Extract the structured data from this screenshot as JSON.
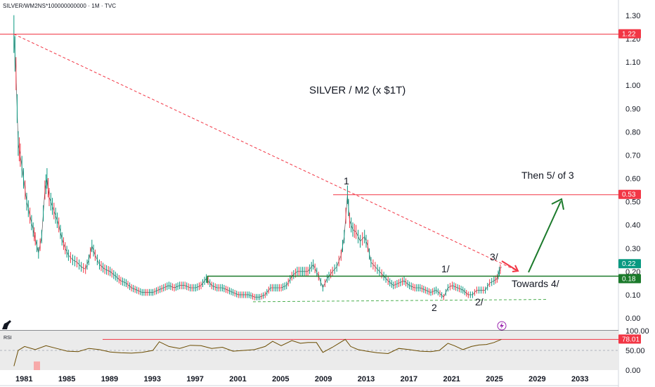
{
  "header": {
    "symbol": "SILVER/WM2NS*100000000000 · 1M · TVC"
  },
  "chart_data": {
    "type": "line",
    "title": "SILVER / M2 (x $1T)",
    "x_ticks": [
      "1981",
      "1985",
      "1989",
      "1993",
      "1997",
      "2001",
      "2005",
      "2009",
      "2013",
      "2017",
      "2021",
      "2025",
      "2029",
      "2033"
    ],
    "y_ticks": [
      "1.30",
      "1.20",
      "1.10",
      "1.00",
      "0.90",
      "0.80",
      "0.70",
      "0.60",
      "0.50",
      "0.40",
      "0.30",
      "0.20",
      "0.10",
      "0.00"
    ],
    "ylim": [
      0,
      1.3
    ],
    "series": [
      {
        "values_by_year": [
          [
            1980.0,
            1.22
          ],
          [
            1980.2,
            1.05
          ],
          [
            1980.4,
            0.75
          ],
          [
            1980.6,
            0.7
          ],
          [
            1980.9,
            0.6
          ],
          [
            1981.2,
            0.5
          ],
          [
            1981.5,
            0.44
          ],
          [
            1981.8,
            0.38
          ],
          [
            1982.0,
            0.34
          ],
          [
            1982.3,
            0.28
          ],
          [
            1982.6,
            0.35
          ],
          [
            1982.9,
            0.55
          ],
          [
            1983.1,
            0.6
          ],
          [
            1983.3,
            0.52
          ],
          [
            1983.6,
            0.48
          ],
          [
            1983.9,
            0.44
          ],
          [
            1984.2,
            0.4
          ],
          [
            1984.5,
            0.34
          ],
          [
            1984.8,
            0.3
          ],
          [
            1985.1,
            0.27
          ],
          [
            1985.5,
            0.25
          ],
          [
            1985.9,
            0.24
          ],
          [
            1986.3,
            0.22
          ],
          [
            1986.7,
            0.21
          ],
          [
            1987.0,
            0.25
          ],
          [
            1987.3,
            0.31
          ],
          [
            1987.6,
            0.27
          ],
          [
            1988.0,
            0.23
          ],
          [
            1988.5,
            0.21
          ],
          [
            1989.0,
            0.2
          ],
          [
            1989.5,
            0.18
          ],
          [
            1990.0,
            0.16
          ],
          [
            1990.5,
            0.15
          ],
          [
            1991.0,
            0.13
          ],
          [
            1991.5,
            0.12
          ],
          [
            1992.0,
            0.11
          ],
          [
            1992.5,
            0.11
          ],
          [
            1993.0,
            0.11
          ],
          [
            1993.5,
            0.12
          ],
          [
            1994.0,
            0.13
          ],
          [
            1994.5,
            0.14
          ],
          [
            1995.0,
            0.13
          ],
          [
            1995.5,
            0.14
          ],
          [
            1996.0,
            0.14
          ],
          [
            1996.5,
            0.13
          ],
          [
            1997.0,
            0.13
          ],
          [
            1997.5,
            0.14
          ],
          [
            1998.0,
            0.17
          ],
          [
            1998.5,
            0.14
          ],
          [
            1999.0,
            0.13
          ],
          [
            1999.5,
            0.13
          ],
          [
            2000.0,
            0.12
          ],
          [
            2000.5,
            0.11
          ],
          [
            2001.0,
            0.1
          ],
          [
            2001.5,
            0.1
          ],
          [
            2002.0,
            0.1
          ],
          [
            2002.5,
            0.09
          ],
          [
            2003.0,
            0.09
          ],
          [
            2003.5,
            0.1
          ],
          [
            2004.0,
            0.13
          ],
          [
            2004.5,
            0.13
          ],
          [
            2005.0,
            0.13
          ],
          [
            2005.5,
            0.14
          ],
          [
            2006.0,
            0.18
          ],
          [
            2006.5,
            0.2
          ],
          [
            2007.0,
            0.2
          ],
          [
            2007.5,
            0.2
          ],
          [
            2008.0,
            0.23
          ],
          [
            2008.5,
            0.18
          ],
          [
            2008.9,
            0.13
          ],
          [
            2009.3,
            0.17
          ],
          [
            2009.8,
            0.2
          ],
          [
            2010.2,
            0.22
          ],
          [
            2010.6,
            0.27
          ],
          [
            2010.9,
            0.35
          ],
          [
            2011.2,
            0.53
          ],
          [
            2011.4,
            0.42
          ],
          [
            2011.7,
            0.38
          ],
          [
            2012.0,
            0.37
          ],
          [
            2012.4,
            0.33
          ],
          [
            2012.8,
            0.35
          ],
          [
            2013.1,
            0.31
          ],
          [
            2013.4,
            0.24
          ],
          [
            2013.8,
            0.22
          ],
          [
            2014.2,
            0.2
          ],
          [
            2014.6,
            0.18
          ],
          [
            2015.0,
            0.16
          ],
          [
            2015.5,
            0.14
          ],
          [
            2016.0,
            0.15
          ],
          [
            2016.5,
            0.16
          ],
          [
            2017.0,
            0.14
          ],
          [
            2017.5,
            0.13
          ],
          [
            2018.0,
            0.13
          ],
          [
            2018.5,
            0.12
          ],
          [
            2019.0,
            0.11
          ],
          [
            2019.5,
            0.12
          ],
          [
            2020.2,
            0.09
          ],
          [
            2020.6,
            0.13
          ],
          [
            2021.0,
            0.14
          ],
          [
            2021.5,
            0.13
          ],
          [
            2022.0,
            0.12
          ],
          [
            2022.5,
            0.1
          ],
          [
            2022.9,
            0.1
          ],
          [
            2023.3,
            0.12
          ],
          [
            2023.7,
            0.12
          ],
          [
            2024.1,
            0.12
          ],
          [
            2024.5,
            0.15
          ],
          [
            2024.9,
            0.16
          ],
          [
            2025.2,
            0.17
          ],
          [
            2025.4,
            0.2
          ],
          [
            2025.6,
            0.22
          ]
        ]
      }
    ],
    "price_tags": [
      {
        "label": "1.22",
        "value": 1.22,
        "color": "#f23645"
      },
      {
        "label": "0.53",
        "value": 0.53,
        "color": "#f23645"
      },
      {
        "label": "0.22",
        "value": 0.22,
        "color": "#089981"
      },
      {
        "label": "0.18",
        "value": 0.18,
        "color": "#1b7a2b"
      }
    ],
    "annotations": {
      "wave_1": "1",
      "wave_1_slash": "1/",
      "wave_2": "2",
      "wave_2_slash": "2/",
      "wave_3_slash": "3/",
      "towards": "Towards 4/",
      "then": "Then 5/ of 3"
    },
    "rsi": {
      "label": "RSI",
      "value_tag": "78.01",
      "y_ticks": [
        "100.00",
        "50.00",
        "0.00"
      ],
      "values_by_year": [
        [
          1980.0,
          10
        ],
        [
          1980.4,
          50
        ],
        [
          1981.0,
          60
        ],
        [
          1982.0,
          52
        ],
        [
          1983.0,
          62
        ],
        [
          1984.0,
          55
        ],
        [
          1985.0,
          48
        ],
        [
          1986.0,
          47
        ],
        [
          1987.0,
          55
        ],
        [
          1988.0,
          52
        ],
        [
          1989.0,
          46
        ],
        [
          1990.0,
          44
        ],
        [
          1991.0,
          43
        ],
        [
          1992.0,
          45
        ],
        [
          1993.0,
          50
        ],
        [
          1993.6,
          72
        ],
        [
          1994.5,
          60
        ],
        [
          1995.5,
          55
        ],
        [
          1996.5,
          63
        ],
        [
          1997.5,
          62
        ],
        [
          1998.5,
          55
        ],
        [
          1999.5,
          58
        ],
        [
          2000.5,
          48
        ],
        [
          2001.5,
          50
        ],
        [
          2002.5,
          52
        ],
        [
          2003.5,
          60
        ],
        [
          2004.2,
          73
        ],
        [
          2005.0,
          62
        ],
        [
          2006.0,
          75
        ],
        [
          2006.8,
          68
        ],
        [
          2007.5,
          70
        ],
        [
          2008.3,
          70
        ],
        [
          2008.9,
          45
        ],
        [
          2009.8,
          58
        ],
        [
          2010.4,
          68
        ],
        [
          2011.0,
          78
        ],
        [
          2011.5,
          60
        ],
        [
          2012.2,
          52
        ],
        [
          2013.0,
          48
        ],
        [
          2014.0,
          44
        ],
        [
          2015.0,
          42
        ],
        [
          2016.0,
          55
        ],
        [
          2017.0,
          52
        ],
        [
          2018.0,
          48
        ],
        [
          2019.0,
          47
        ],
        [
          2019.8,
          50
        ],
        [
          2020.6,
          68
        ],
        [
          2021.2,
          62
        ],
        [
          2022.0,
          52
        ],
        [
          2022.8,
          60
        ],
        [
          2023.5,
          64
        ],
        [
          2024.2,
          65
        ],
        [
          2024.9,
          70
        ],
        [
          2025.6,
          78
        ]
      ]
    }
  },
  "colors": {
    "price_up": "#089981",
    "price_down": "#f23645",
    "green_line": "#1b7a2b",
    "red_line": "#f23645",
    "rsi_line": "#6b4c00"
  }
}
